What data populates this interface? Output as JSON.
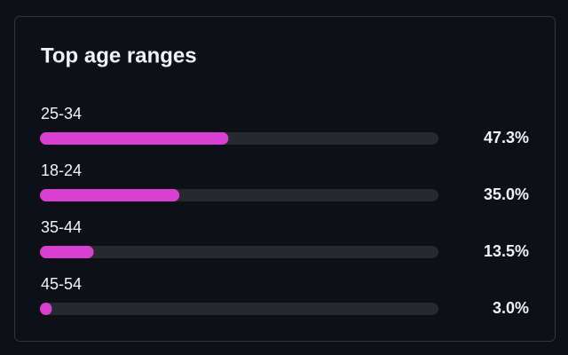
{
  "chart_data": {
    "type": "hbar",
    "title": "Top age ranges",
    "categories": [
      "25-34",
      "18-24",
      "35-44",
      "45-54"
    ],
    "values": [
      47.3,
      35.0,
      13.5,
      3.0
    ],
    "value_labels": [
      "47.3%",
      "35.0%",
      "13.5%",
      "3.0%"
    ],
    "xlim": [
      0,
      100
    ],
    "color": "#d93fd0"
  }
}
